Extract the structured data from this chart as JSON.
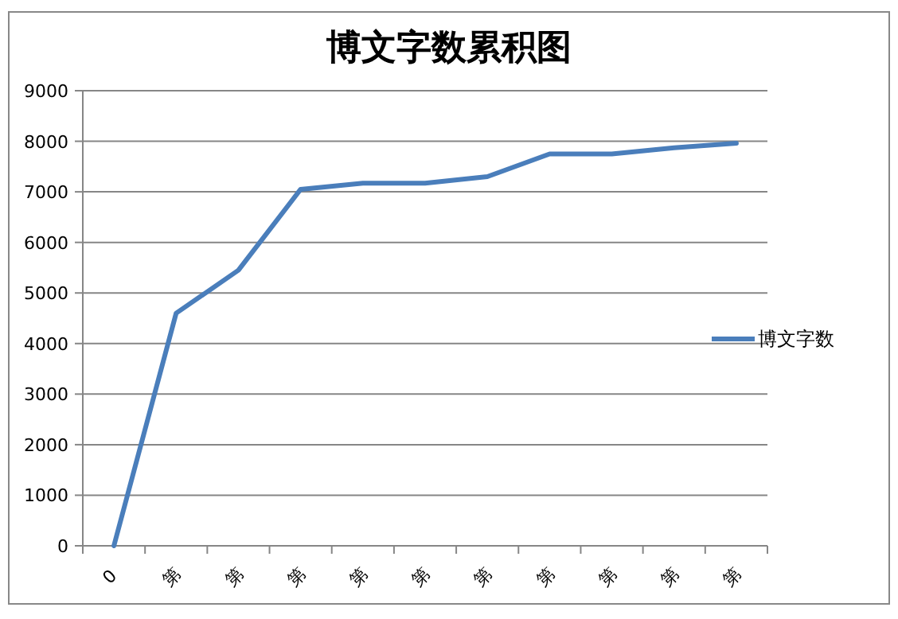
{
  "chart_data": {
    "type": "line",
    "title": "博文字数累积图",
    "categories": [
      "0",
      "第",
      "第",
      "第",
      "第",
      "第",
      "第",
      "第",
      "第",
      "第",
      "第"
    ],
    "series": [
      {
        "name": "博文字数",
        "color": "#4a7ebb",
        "values": [
          0,
          4600,
          5450,
          7050,
          7170,
          7170,
          7300,
          7750,
          7750,
          7870,
          7960
        ]
      }
    ],
    "ylim": [
      0,
      9000
    ],
    "yticks": [
      0,
      1000,
      2000,
      3000,
      4000,
      5000,
      6000,
      7000,
      8000,
      9000
    ],
    "grid": "y",
    "legend": "right",
    "marker": "none",
    "line_style": "solid"
  }
}
